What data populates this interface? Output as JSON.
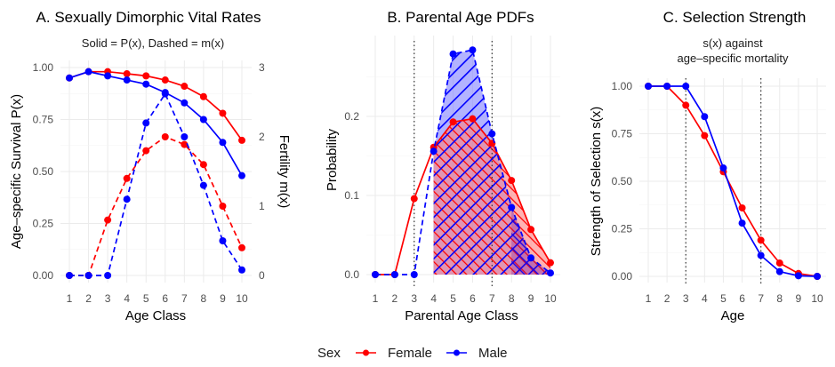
{
  "colors": {
    "female": "#ff0000",
    "male": "#0000ff",
    "female_fill": "#ff8080",
    "male_fill": "#8080ff"
  },
  "legend": {
    "title": "Sex",
    "items": [
      "Female",
      "Male"
    ],
    "placement": "bottom"
  },
  "chart_data": [
    {
      "type": "line",
      "title": "A. Sexually Dimorphic Vital Rates",
      "subtitle": "Solid = P(x), Dashed = m(x)",
      "xlabel": "Age Class",
      "ylabel": "Age–specific Survival P(x)",
      "ylabel_right": "Fertility m(x)",
      "x": [
        1,
        2,
        3,
        4,
        5,
        6,
        7,
        8,
        9,
        10
      ],
      "xticks": [
        "1",
        "2",
        "3",
        "4",
        "5",
        "6",
        "7",
        "8",
        "9",
        "10"
      ],
      "ylim": [
        0,
        1
      ],
      "yticks": [
        "0.00",
        "0.25",
        "0.50",
        "0.75",
        "1.00"
      ],
      "ylim_right": [
        0,
        3
      ],
      "yticks_right": [
        "0",
        "1",
        "2",
        "3"
      ],
      "series": [
        {
          "name": "Female",
          "metric": "P(x)",
          "style": "solid",
          "values": [
            0.95,
            0.98,
            0.98,
            0.97,
            0.96,
            0.94,
            0.91,
            0.86,
            0.78,
            0.65
          ]
        },
        {
          "name": "Male",
          "metric": "P(x)",
          "style": "solid",
          "values": [
            0.95,
            0.98,
            0.96,
            0.94,
            0.92,
            0.88,
            0.83,
            0.75,
            0.64,
            0.48
          ]
        },
        {
          "name": "Female",
          "metric": "m(x)",
          "style": "dashed",
          "axis": "right",
          "values": [
            0,
            0,
            0.8,
            1.4,
            1.8,
            2.0,
            1.89,
            1.6,
            1.0,
            0.4
          ]
        },
        {
          "name": "Male",
          "metric": "m(x)",
          "style": "dashed",
          "axis": "right",
          "values": [
            0,
            0,
            0,
            1.1,
            2.2,
            2.62,
            2.0,
            1.3,
            0.5,
            0.08
          ]
        }
      ]
    },
    {
      "type": "area",
      "title": "B. Parental Age PDFs",
      "xlabel": "Parental Age Class",
      "ylabel": "Probability",
      "x": [
        1,
        2,
        3,
        4,
        5,
        6,
        7,
        8,
        9,
        10
      ],
      "xticks": [
        "1",
        "2",
        "3",
        "4",
        "5",
        "6",
        "7",
        "8",
        "9",
        "10"
      ],
      "ylim": [
        0,
        0.29
      ],
      "yticks": [
        "0.0",
        "0.1",
        "0.2"
      ],
      "vlines": [
        3,
        7
      ],
      "shaded_from": 4,
      "series": [
        {
          "name": "Female",
          "style": "solid",
          "values": [
            0,
            0,
            0.096,
            0.161,
            0.193,
            0.197,
            0.166,
            0.119,
            0.057,
            0.015
          ]
        },
        {
          "name": "Male",
          "style": "dashed",
          "values": [
            0,
            0,
            0,
            0.156,
            0.279,
            0.284,
            0.178,
            0.085,
            0.021,
            0.002
          ]
        }
      ]
    },
    {
      "type": "line",
      "title": "C. Selection Strength",
      "subtitle": "s(x) against\nage–specific mortality",
      "xlabel": "Age",
      "ylabel": "Strength of Selection s(x)",
      "x": [
        1,
        2,
        3,
        4,
        5,
        6,
        7,
        8,
        9,
        10
      ],
      "xticks": [
        "1",
        "2",
        "3",
        "4",
        "5",
        "6",
        "7",
        "8",
        "9",
        "10"
      ],
      "ylim": [
        0,
        1
      ],
      "yticks": [
        "0.00",
        "0.25",
        "0.50",
        "0.75",
        "1.00"
      ],
      "vlines": [
        3,
        7
      ],
      "series": [
        {
          "name": "Female",
          "style": "solid",
          "values": [
            1.0,
            1.0,
            0.9,
            0.74,
            0.55,
            0.36,
            0.19,
            0.07,
            0.015,
            0.0
          ]
        },
        {
          "name": "Male",
          "style": "solid",
          "values": [
            1.0,
            1.0,
            1.0,
            0.84,
            0.57,
            0.28,
            0.11,
            0.025,
            0.003,
            0.0
          ]
        }
      ]
    }
  ]
}
